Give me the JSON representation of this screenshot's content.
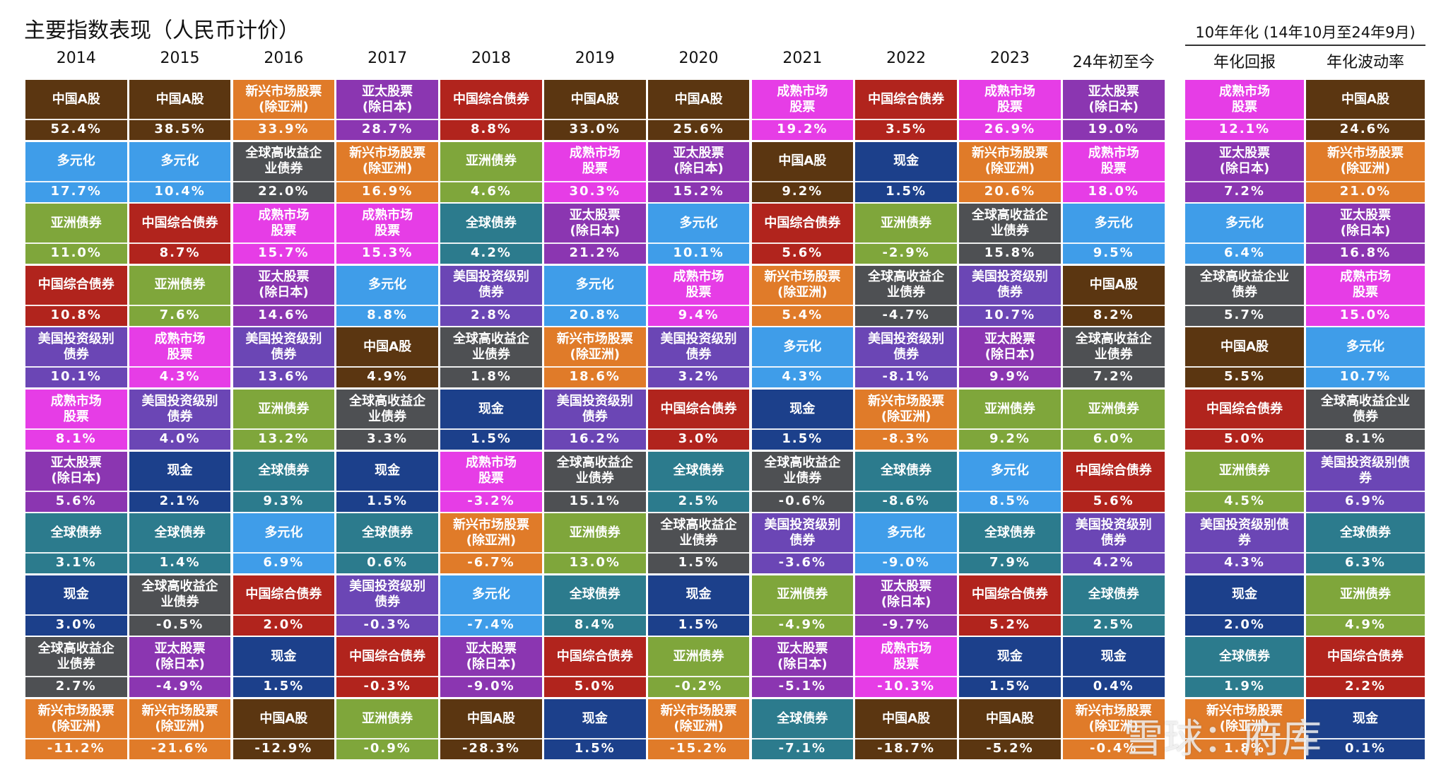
{
  "title": "主要指数表现（人民币计价）",
  "group_header": "10年年化 (14年10月至24年9月)",
  "watermark": "雪球：府库",
  "colors": {
    "中国A股": "#5b3611",
    "多元化": "#3f9de9",
    "亚洲债券": "#7fa63b",
    "中国综合债券": "#b1241d",
    "美国投资级别债券": "#6b46b5",
    "成熟市场股票": "#e63de6",
    "亚太股票(除日本)": "#8b36b1",
    "全球债券": "#2c7b8d",
    "现金": "#1c408b",
    "全球高收益企业债券": "#4e5053",
    "新兴市场股票(除亚洲)": "#e07b29"
  },
  "columns": [
    {
      "header": "2014",
      "cells": [
        {
          "label": "中国A股",
          "value": "52.4%"
        },
        {
          "label": "多元化",
          "value": "17.7%"
        },
        {
          "label": "亚洲债券",
          "value": "11.0%"
        },
        {
          "label": "中国综合债券",
          "value": "10.8%"
        },
        {
          "label": "美国投资级别\n债券",
          "value": "10.1%"
        },
        {
          "label": "成熟市场\n股票",
          "value": "8.1%"
        },
        {
          "label": "亚太股票\n(除日本)",
          "value": "5.6%"
        },
        {
          "label": "全球债券",
          "value": "3.1%"
        },
        {
          "label": "现金",
          "value": "3.0%"
        },
        {
          "label": "全球高收益企\n业债券",
          "value": "2.7%"
        },
        {
          "label": "新兴市场股票\n(除亚洲)",
          "value": "-11.2%"
        }
      ]
    },
    {
      "header": "2015",
      "cells": [
        {
          "label": "中国A股",
          "value": "38.5%"
        },
        {
          "label": "多元化",
          "value": "10.4%"
        },
        {
          "label": "中国综合债券",
          "value": "8.7%"
        },
        {
          "label": "亚洲债券",
          "value": "7.6%"
        },
        {
          "label": "成熟市场\n股票",
          "value": "4.3%"
        },
        {
          "label": "美国投资级别\n债券",
          "value": "4.0%"
        },
        {
          "label": "现金",
          "value": "2.1%"
        },
        {
          "label": "全球债券",
          "value": "1.4%"
        },
        {
          "label": "全球高收益企\n业债券",
          "value": "-0.5%"
        },
        {
          "label": "亚太股票\n(除日本)",
          "value": "-4.9%"
        },
        {
          "label": "新兴市场股票\n(除亚洲)",
          "value": "-21.6%"
        }
      ]
    },
    {
      "header": "2016",
      "cells": [
        {
          "label": "新兴市场股票\n(除亚洲)",
          "value": "33.9%"
        },
        {
          "label": "全球高收益企\n业债券",
          "value": "22.0%"
        },
        {
          "label": "成熟市场\n股票",
          "value": "15.7%"
        },
        {
          "label": "亚太股票\n(除日本)",
          "value": "14.6%"
        },
        {
          "label": "美国投资级别\n债券",
          "value": "13.6%"
        },
        {
          "label": "亚洲债券",
          "value": "13.2%"
        },
        {
          "label": "全球债券",
          "value": "9.3%"
        },
        {
          "label": "多元化",
          "value": "6.9%"
        },
        {
          "label": "中国综合债券",
          "value": "2.0%"
        },
        {
          "label": "现金",
          "value": "1.5%"
        },
        {
          "label": "中国A股",
          "value": "-12.9%"
        }
      ]
    },
    {
      "header": "2017",
      "cells": [
        {
          "label": "亚太股票\n(除日本)",
          "value": "28.7%"
        },
        {
          "label": "新兴市场股票\n(除亚洲)",
          "value": "16.9%"
        },
        {
          "label": "成熟市场\n股票",
          "value": "15.3%"
        },
        {
          "label": "多元化",
          "value": "8.8%"
        },
        {
          "label": "中国A股",
          "value": "4.9%"
        },
        {
          "label": "全球高收益企\n业债券",
          "value": "3.3%"
        },
        {
          "label": "现金",
          "value": "1.5%"
        },
        {
          "label": "全球债券",
          "value": "0.6%"
        },
        {
          "label": "美国投资级别\n债券",
          "value": "-0.3%"
        },
        {
          "label": "中国综合债券",
          "value": "-0.3%"
        },
        {
          "label": "亚洲债券",
          "value": "-0.9%"
        }
      ]
    },
    {
      "header": "2018",
      "cells": [
        {
          "label": "中国综合债券",
          "value": "8.8%"
        },
        {
          "label": "亚洲债券",
          "value": "4.6%"
        },
        {
          "label": "全球债券",
          "value": "4.2%"
        },
        {
          "label": "美国投资级别\n债券",
          "value": "2.8%"
        },
        {
          "label": "全球高收益企\n业债券",
          "value": "1.8%"
        },
        {
          "label": "现金",
          "value": "1.5%"
        },
        {
          "label": "成熟市场\n股票",
          "value": "-3.2%"
        },
        {
          "label": "新兴市场股票\n(除亚洲)",
          "value": "-6.7%"
        },
        {
          "label": "多元化",
          "value": "-7.4%"
        },
        {
          "label": "亚太股票\n(除日本)",
          "value": "-9.0%"
        },
        {
          "label": "中国A股",
          "value": "-28.3%"
        }
      ]
    },
    {
      "header": "2019",
      "cells": [
        {
          "label": "中国A股",
          "value": "33.0%"
        },
        {
          "label": "成熟市场\n股票",
          "value": "30.3%"
        },
        {
          "label": "亚太股票\n(除日本)",
          "value": "21.2%"
        },
        {
          "label": "多元化",
          "value": "20.8%"
        },
        {
          "label": "新兴市场股票\n(除亚洲)",
          "value": "18.6%"
        },
        {
          "label": "美国投资级别\n债券",
          "value": "16.2%"
        },
        {
          "label": "全球高收益企\n业债券",
          "value": "15.1%"
        },
        {
          "label": "亚洲债券",
          "value": "13.0%"
        },
        {
          "label": "全球债券",
          "value": "8.4%"
        },
        {
          "label": "中国综合债券",
          "value": "5.0%"
        },
        {
          "label": "现金",
          "value": "1.5%"
        }
      ]
    },
    {
      "header": "2020",
      "cells": [
        {
          "label": "中国A股",
          "value": "25.6%"
        },
        {
          "label": "亚太股票\n(除日本)",
          "value": "15.2%"
        },
        {
          "label": "多元化",
          "value": "10.1%"
        },
        {
          "label": "成熟市场\n股票",
          "value": "9.4%"
        },
        {
          "label": "美国投资级别\n债券",
          "value": "3.2%"
        },
        {
          "label": "中国综合债券",
          "value": "3.0%"
        },
        {
          "label": "全球债券",
          "value": "2.5%"
        },
        {
          "label": "全球高收益企\n业债券",
          "value": "1.5%"
        },
        {
          "label": "现金",
          "value": "1.5%"
        },
        {
          "label": "亚洲债券",
          "value": "-0.2%"
        },
        {
          "label": "新兴市场股票\n(除亚洲)",
          "value": "-15.2%"
        }
      ]
    },
    {
      "header": "2021",
      "cells": [
        {
          "label": "成熟市场\n股票",
          "value": "19.2%"
        },
        {
          "label": "中国A股",
          "value": "9.2%"
        },
        {
          "label": "中国综合债券",
          "value": "5.6%"
        },
        {
          "label": "新兴市场股票\n(除亚洲)",
          "value": "5.4%"
        },
        {
          "label": "多元化",
          "value": "4.3%"
        },
        {
          "label": "现金",
          "value": "1.5%"
        },
        {
          "label": "全球高收益企\n业债券",
          "value": "-0.6%"
        },
        {
          "label": "美国投资级别\n债券",
          "value": "-3.6%"
        },
        {
          "label": "亚洲债券",
          "value": "-4.9%"
        },
        {
          "label": "亚太股票\n(除日本)",
          "value": "-5.1%"
        },
        {
          "label": "全球债券",
          "value": "-7.1%"
        }
      ]
    },
    {
      "header": "2022",
      "cells": [
        {
          "label": "中国综合债券",
          "value": "3.5%"
        },
        {
          "label": "现金",
          "value": "1.5%"
        },
        {
          "label": "亚洲债券",
          "value": "-2.9%"
        },
        {
          "label": "全球高收益企\n业债券",
          "value": "-4.7%"
        },
        {
          "label": "美国投资级别\n债券",
          "value": "-8.1%"
        },
        {
          "label": "新兴市场股票\n(除亚洲)",
          "value": "-8.3%"
        },
        {
          "label": "全球债券",
          "value": "-8.6%"
        },
        {
          "label": "多元化",
          "value": "-9.0%"
        },
        {
          "label": "亚太股票\n(除日本)",
          "value": "-9.7%"
        },
        {
          "label": "成熟市场\n股票",
          "value": "-10.3%"
        },
        {
          "label": "中国A股",
          "value": "-18.7%"
        }
      ]
    },
    {
      "header": "2023",
      "cells": [
        {
          "label": "成熟市场\n股票",
          "value": "26.9%"
        },
        {
          "label": "新兴市场股票\n(除亚洲)",
          "value": "20.6%"
        },
        {
          "label": "全球高收益企\n业债券",
          "value": "15.8%"
        },
        {
          "label": "美国投资级别\n债券",
          "value": "10.7%"
        },
        {
          "label": "亚太股票\n(除日本)",
          "value": "9.9%"
        },
        {
          "label": "亚洲债券",
          "value": "9.2%"
        },
        {
          "label": "多元化",
          "value": "8.5%"
        },
        {
          "label": "全球债券",
          "value": "7.9%"
        },
        {
          "label": "中国综合债券",
          "value": "5.2%"
        },
        {
          "label": "现金",
          "value": "1.5%"
        },
        {
          "label": "中国A股",
          "value": "-5.2%"
        }
      ]
    },
    {
      "header": "24年初至今",
      "cells": [
        {
          "label": "亚太股票\n(除日本)",
          "value": "19.0%"
        },
        {
          "label": "成熟市场\n股票",
          "value": "18.0%"
        },
        {
          "label": "多元化",
          "value": "9.5%"
        },
        {
          "label": "中国A股",
          "value": "8.2%"
        },
        {
          "label": "全球高收益企\n业债券",
          "value": "7.2%"
        },
        {
          "label": "亚洲债券",
          "value": "6.0%"
        },
        {
          "label": "中国综合债券",
          "value": "5.6%"
        },
        {
          "label": "美国投资级别\n债券",
          "value": "4.2%"
        },
        {
          "label": "全球债券",
          "value": "2.5%"
        },
        {
          "label": "现金",
          "value": "0.4%"
        },
        {
          "label": "新兴市场股票\n(除亚洲)",
          "value": "-0.4%"
        }
      ]
    },
    {
      "header": "年化回报",
      "cells": [
        {
          "label": "成熟市场\n股票",
          "value": "12.1%"
        },
        {
          "label": "亚太股票\n(除日本)",
          "value": "7.2%"
        },
        {
          "label": "多元化",
          "value": "6.4%"
        },
        {
          "label": "全球高收益企业\n债券",
          "value": "5.7%"
        },
        {
          "label": "中国A股",
          "value": "5.5%"
        },
        {
          "label": "中国综合债券",
          "value": "5.0%"
        },
        {
          "label": "亚洲债券",
          "value": "4.5%"
        },
        {
          "label": "美国投资级别债\n券",
          "value": "4.3%"
        },
        {
          "label": "现金",
          "value": "2.0%"
        },
        {
          "label": "全球债券",
          "value": "1.9%"
        },
        {
          "label": "新兴市场股票\n(除亚洲)",
          "value": "1.8%"
        }
      ]
    },
    {
      "header": "年化波动率",
      "cells": [
        {
          "label": "中国A股",
          "value": "24.6%"
        },
        {
          "label": "新兴市场股票\n(除亚洲)",
          "value": "21.0%"
        },
        {
          "label": "亚太股票\n(除日本)",
          "value": "16.8%"
        },
        {
          "label": "成熟市场\n股票",
          "value": "15.0%"
        },
        {
          "label": "多元化",
          "value": "10.7%"
        },
        {
          "label": "全球高收益企业\n债券",
          "value": "8.1%"
        },
        {
          "label": "美国投资级别债\n券",
          "value": "6.9%"
        },
        {
          "label": "全球债券",
          "value": "6.3%"
        },
        {
          "label": "亚洲债券",
          "value": "4.9%"
        },
        {
          "label": "中国综合债券",
          "value": "2.2%"
        },
        {
          "label": "现金",
          "value": "0.1%"
        }
      ]
    }
  ]
}
